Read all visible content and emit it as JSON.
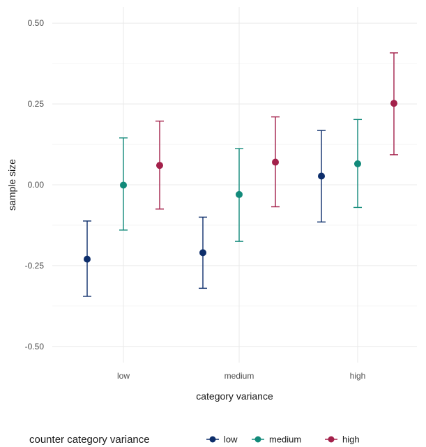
{
  "chart_data": {
    "type": "scatter",
    "subtype": "point-with-error-bars",
    "title": "",
    "xlabel": "category variance",
    "ylabel": "sample size",
    "categories": [
      "low",
      "medium",
      "high"
    ],
    "ylim": [
      -0.55,
      0.55
    ],
    "yticks": [
      -0.5,
      -0.25,
      0.0,
      0.25,
      0.5
    ],
    "ytick_labels": [
      "-0.50",
      "-0.25",
      "0.00",
      "0.25",
      "0.50"
    ],
    "grid": true,
    "legend": {
      "title": "counter category variance",
      "position": "bottom"
    },
    "series": [
      {
        "name": "low",
        "color": "#0d2e6b",
        "values": [
          -0.23,
          -0.21,
          0.027
        ],
        "lower": [
          -0.345,
          -0.32,
          -0.115
        ],
        "upper": [
          -0.112,
          -0.1,
          0.168
        ]
      },
      {
        "name": "medium",
        "color": "#128a7a",
        "values": [
          -0.001,
          -0.03,
          0.065
        ],
        "lower": [
          -0.14,
          -0.175,
          -0.07
        ],
        "upper": [
          0.145,
          0.112,
          0.202
        ]
      },
      {
        "name": "high",
        "color": "#a3204a",
        "values": [
          0.06,
          0.07,
          0.252
        ],
        "lower": [
          -0.075,
          -0.068,
          0.093
        ],
        "upper": [
          0.197,
          0.21,
          0.408
        ]
      }
    ]
  }
}
